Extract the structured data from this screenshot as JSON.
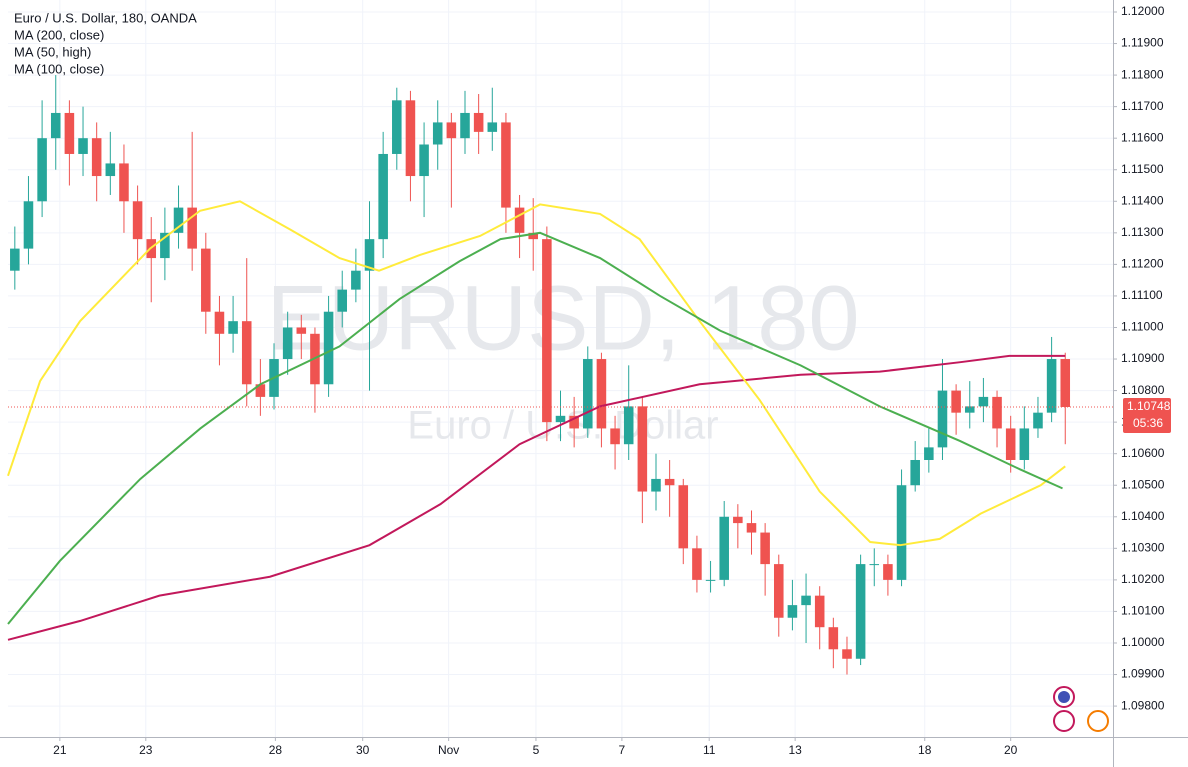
{
  "chart_data": {
    "type": "candlestick",
    "title": "Euro / U.S. Dollar, 180, OANDA",
    "watermark": "EURUSD, 180",
    "watermark_subtitle": "Euro / U.S. Dollar",
    "up_color": "#26a69a",
    "down_color": "#ef5350",
    "x": [
      0,
      1,
      2,
      3,
      4,
      5,
      6,
      7,
      8,
      9,
      10,
      11,
      12,
      13,
      14,
      15,
      16,
      17,
      18,
      19,
      20,
      21,
      22,
      23,
      24,
      25,
      26,
      27,
      28,
      29,
      30,
      31,
      32,
      33,
      34,
      35,
      36,
      37,
      38,
      39,
      40,
      41,
      42,
      43,
      44,
      45,
      46,
      47,
      48,
      49,
      50,
      51,
      52,
      53,
      54,
      55,
      56,
      57,
      58,
      59,
      60,
      61,
      62,
      63,
      64,
      65,
      66,
      67,
      68,
      69,
      70,
      71,
      72,
      73,
      74,
      75,
      76,
      77
    ],
    "open": [
      1.1118,
      1.1125,
      1.114,
      1.116,
      1.1168,
      1.1155,
      1.116,
      1.1148,
      1.1152,
      1.114,
      1.1128,
      1.1122,
      1.113,
      1.1138,
      1.1125,
      1.1105,
      1.1098,
      1.1102,
      1.1082,
      1.1078,
      1.109,
      1.11,
      1.1098,
      1.1082,
      1.1105,
      1.1112,
      1.1118,
      1.1128,
      1.1155,
      1.1172,
      1.1148,
      1.1158,
      1.1165,
      1.116,
      1.1168,
      1.1162,
      1.1165,
      1.1138,
      1.113,
      1.1128,
      1.107,
      1.1072,
      1.1068,
      1.109,
      1.1068,
      1.1063,
      1.1075,
      1.1048,
      1.1052,
      1.105,
      1.103,
      1.102,
      1.102,
      1.104,
      1.1038,
      1.1035,
      1.1025,
      1.1008,
      1.1012,
      1.1015,
      1.1005,
      1.0998,
      1.0995,
      1.1025,
      1.1025,
      1.102,
      1.105,
      1.1058,
      1.1062,
      1.108,
      1.1073,
      1.1075,
      1.1078,
      1.1068,
      1.1058,
      1.1068,
      1.1073,
      1.109
    ],
    "high": [
      1.1132,
      1.1148,
      1.1172,
      1.118,
      1.1172,
      1.117,
      1.1165,
      1.1162,
      1.1158,
      1.1145,
      1.1135,
      1.1138,
      1.1145,
      1.1162,
      1.113,
      1.111,
      1.111,
      1.1122,
      1.109,
      1.1095,
      1.1105,
      1.1104,
      1.11,
      1.111,
      1.1118,
      1.1125,
      1.114,
      1.1162,
      1.1176,
      1.1175,
      1.1165,
      1.1172,
      1.1168,
      1.1175,
      1.1174,
      1.1176,
      1.1168,
      1.1142,
      1.1141,
      1.1132,
      1.108,
      1.1078,
      1.1094,
      1.1092,
      1.1072,
      1.1088,
      1.1078,
      1.106,
      1.1058,
      1.1052,
      1.1034,
      1.1026,
      1.1045,
      1.1044,
      1.1042,
      1.1038,
      1.1028,
      1.102,
      1.1022,
      1.1018,
      1.1008,
      1.1002,
      1.1028,
      1.103,
      1.1028,
      1.1055,
      1.1064,
      1.1068,
      1.109,
      1.1082,
      1.1083,
      1.1084,
      1.108,
      1.1072,
      1.1075,
      1.1078,
      1.1097,
      1.1092
    ],
    "low": [
      1.1112,
      1.112,
      1.1135,
      1.115,
      1.1145,
      1.1148,
      1.114,
      1.1142,
      1.113,
      1.112,
      1.1108,
      1.1115,
      1.1125,
      1.1118,
      1.1098,
      1.1088,
      1.1092,
      1.1075,
      1.1072,
      1.1074,
      1.1085,
      1.109,
      1.1073,
      1.1078,
      1.11,
      1.1108,
      1.108,
      1.1122,
      1.115,
      1.114,
      1.1135,
      1.115,
      1.1138,
      1.1155,
      1.1155,
      1.1156,
      1.113,
      1.1122,
      1.1118,
      1.1064,
      1.1064,
      1.1062,
      1.1065,
      1.1062,
      1.1055,
      1.1058,
      1.1038,
      1.1042,
      1.104,
      1.1025,
      1.1016,
      1.1016,
      1.1018,
      1.103,
      1.1028,
      1.1015,
      1.1002,
      1.1004,
      1.1,
      1.0998,
      1.0992,
      1.099,
      1.0993,
      1.1018,
      1.1015,
      1.1018,
      1.1048,
      1.1054,
      1.1058,
      1.1066,
      1.1068,
      1.107,
      1.1062,
      1.1054,
      1.1055,
      1.1065,
      1.107,
      1.1063
    ],
    "close": [
      1.1125,
      1.114,
      1.116,
      1.1168,
      1.1155,
      1.116,
      1.1148,
      1.1152,
      1.114,
      1.1128,
      1.1122,
      1.113,
      1.1138,
      1.1125,
      1.1105,
      1.1098,
      1.1102,
      1.1082,
      1.1078,
      1.109,
      1.11,
      1.1098,
      1.1082,
      1.1105,
      1.1112,
      1.1118,
      1.1128,
      1.1155,
      1.1172,
      1.1148,
      1.1158,
      1.1165,
      1.116,
      1.1168,
      1.1162,
      1.1165,
      1.1138,
      1.113,
      1.1128,
      1.107,
      1.1072,
      1.1068,
      1.109,
      1.1068,
      1.1063,
      1.1075,
      1.1048,
      1.1052,
      1.105,
      1.103,
      1.102,
      1.102,
      1.104,
      1.1038,
      1.1035,
      1.1025,
      1.1008,
      1.1012,
      1.1015,
      1.1005,
      1.0998,
      1.0995,
      1.1025,
      1.1025,
      1.102,
      1.105,
      1.1058,
      1.1062,
      1.108,
      1.1073,
      1.1075,
      1.1078,
      1.1068,
      1.1058,
      1.1068,
      1.1073,
      1.109,
      1.10748
    ],
    "series": [
      {
        "name": "MA (200, close)",
        "color": "#c2185b",
        "x": [
          -0.5,
          4.8,
          10.6,
          18.7,
          26,
          31.2,
          37,
          42.9,
          50.2,
          57.6,
          63.4,
          69.3,
          72.9,
          77
        ],
        "values": [
          1.1001,
          1.1007,
          1.1015,
          1.1021,
          1.1031,
          1.1044,
          1.1063,
          1.1075,
          1.1082,
          1.1085,
          1.1086,
          1.1089,
          1.1091,
          1.1091
        ]
      },
      {
        "name": "MA (50, high)",
        "color": "#ffeb3b",
        "x": [
          -0.5,
          1.85,
          4.78,
          9.91,
          13.58,
          16.5,
          20.2,
          23.8,
          26.7,
          29.7,
          34.1,
          38.5,
          42.9,
          45.8,
          50.2,
          54.6,
          59,
          62.7,
          64.9,
          67.8,
          70.8,
          75.2,
          77
        ],
        "values": [
          1.1053,
          1.1083,
          1.1102,
          1.1125,
          1.1137,
          1.114,
          1.1131,
          1.1122,
          1.1118,
          1.1123,
          1.1129,
          1.1139,
          1.1136,
          1.1128,
          1.1102,
          1.1077,
          1.1048,
          1.1032,
          1.1031,
          1.1033,
          1.1041,
          1.105,
          1.1056
        ]
      },
      {
        "name": "MA (100, close)",
        "color": "#4caf50",
        "x": [
          -0.5,
          3.3,
          9.2,
          13.6,
          18,
          23.8,
          28.2,
          32.6,
          35.6,
          38.5,
          42.9,
          47.3,
          51.7,
          57.6,
          63.4,
          69.3,
          73.7,
          76.8
        ],
        "values": [
          1.1006,
          1.1026,
          1.1052,
          1.1068,
          1.1082,
          1.1094,
          1.1109,
          1.1121,
          1.1128,
          1.113,
          1.1122,
          1.111,
          1.1099,
          1.1088,
          1.1075,
          1.1064,
          1.1055,
          1.1049
        ]
      }
    ],
    "last_price": {
      "value": 1.10748,
      "label": "1.10748"
    },
    "countdown": "05:36",
    "xlim": [
      -0.5,
      80.5
    ],
    "xticks": [
      {
        "value": 3.3,
        "label": "21"
      },
      {
        "value": 9.6,
        "label": "23"
      },
      {
        "value": 19.1,
        "label": "28"
      },
      {
        "value": 25.5,
        "label": "30"
      },
      {
        "value": 31.8,
        "label": "Nov"
      },
      {
        "value": 38.2,
        "label": "5"
      },
      {
        "value": 44.5,
        "label": "7"
      },
      {
        "value": 50.9,
        "label": "11"
      },
      {
        "value": 57.2,
        "label": "13"
      },
      {
        "value": 66.7,
        "label": "18"
      },
      {
        "value": 73,
        "label": "20"
      }
    ],
    "ylim": [
      1.09702,
      1.12038
    ],
    "yticks": [
      {
        "value": 1.12,
        "label": "1.12000"
      },
      {
        "value": 1.119,
        "label": "1.11900"
      },
      {
        "value": 1.118,
        "label": "1.11800"
      },
      {
        "value": 1.117,
        "label": "1.11700"
      },
      {
        "value": 1.116,
        "label": "1.11600"
      },
      {
        "value": 1.115,
        "label": "1.11500"
      },
      {
        "value": 1.114,
        "label": "1.11400"
      },
      {
        "value": 1.113,
        "label": "1.11300"
      },
      {
        "value": 1.112,
        "label": "1.11200"
      },
      {
        "value": 1.111,
        "label": "1.11100"
      },
      {
        "value": 1.11,
        "label": "1.11000"
      },
      {
        "value": 1.109,
        "label": "1.10900"
      },
      {
        "value": 1.108,
        "label": "1.10800"
      },
      {
        "value": 1.107,
        "label": "1.10700"
      },
      {
        "value": 1.106,
        "label": "1.10600"
      },
      {
        "value": 1.105,
        "label": "1.10500"
      },
      {
        "value": 1.104,
        "label": "1.10400"
      },
      {
        "value": 1.103,
        "label": "1.10300"
      },
      {
        "value": 1.102,
        "label": "1.10200"
      },
      {
        "value": 1.101,
        "label": "1.10100"
      },
      {
        "value": 1.1,
        "label": "1.10000"
      },
      {
        "value": 1.099,
        "label": "1.09900"
      },
      {
        "value": 1.098,
        "label": "1.09800"
      }
    ]
  }
}
